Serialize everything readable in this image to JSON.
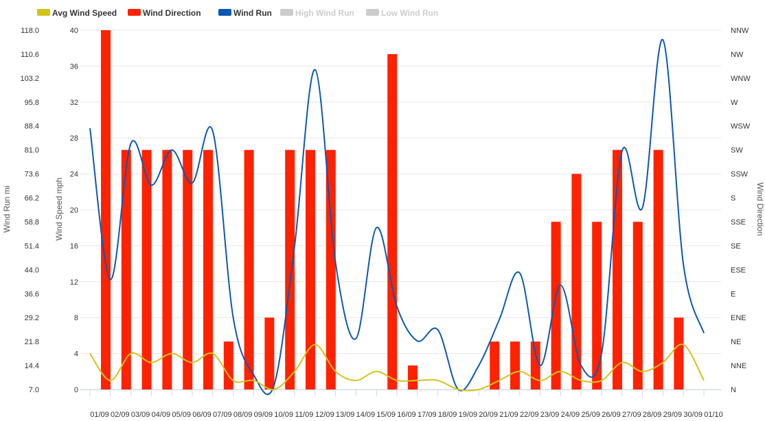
{
  "chart_data": {
    "type": "bar+line",
    "legend": {
      "placement": "top-left",
      "items": [
        {
          "label": "Avg Wind Speed",
          "color": "#d4c21a",
          "visible": true
        },
        {
          "label": "Wind Direction",
          "color": "#ff2200",
          "visible": true
        },
        {
          "label": "Wind Run",
          "color": "#0b57b5",
          "visible": true
        },
        {
          "label": "High Wind Run",
          "color": "#cccccc",
          "visible": false
        },
        {
          "label": "Low Wind Run",
          "color": "#cccccc",
          "visible": false
        }
      ]
    },
    "categories": [
      "01/09",
      "02/09",
      "03/09",
      "04/09",
      "05/09",
      "06/09",
      "07/09",
      "08/09",
      "09/09",
      "10/09",
      "11/09",
      "12/09",
      "13/09",
      "14/09",
      "15/09",
      "16/09",
      "17/09",
      "18/09",
      "19/09",
      "20/09",
      "21/09",
      "22/09",
      "23/09",
      "24/09",
      "25/09",
      "26/09",
      "27/09",
      "28/09",
      "29/09",
      "30/09",
      "01/10"
    ],
    "axes": {
      "wind_run": {
        "label": "Wind Run mi",
        "min": 7.0,
        "max": 118.0,
        "ticks": [
          "118.0",
          "110.6",
          "103.2",
          "95.8",
          "88.4",
          "81.0",
          "73.6",
          "66.2",
          "58.8",
          "51.4",
          "44.0",
          "36.6",
          "29.2",
          "21.8",
          "14.4",
          "7.0"
        ]
      },
      "wind_speed": {
        "label": "Wind Speed mph",
        "min": 0,
        "max": 40,
        "ticks": [
          "40",
          "36",
          "32",
          "28",
          "24",
          "20",
          "16",
          "12",
          "8",
          "4",
          "0"
        ]
      },
      "wind_direction": {
        "label": "Wind Direction",
        "ticks": [
          "NNW",
          "NW",
          "WNW",
          "W",
          "WSW",
          "SW",
          "SSW",
          "S",
          "SSE",
          "SE",
          "ESE",
          "E",
          "ENE",
          "NE",
          "NNE",
          "N"
        ]
      }
    },
    "grid": true,
    "series": [
      {
        "name": "Wind Direction",
        "kind": "bar",
        "axis": "wind_direction",
        "values": [
          "NNW",
          "SW",
          "SW",
          "SW",
          "SW",
          "SW",
          "NE",
          "SW",
          "ENE",
          "SW",
          "SW",
          "SW",
          null,
          null,
          "NW",
          "NNE",
          null,
          null,
          null,
          "NE",
          "NE",
          "NE",
          "SSE",
          "SSW",
          "SSE",
          "SW",
          "SSE",
          "SW",
          "ENE",
          null,
          null
        ]
      },
      {
        "name": "Wind Run",
        "kind": "line",
        "axis": "wind_run",
        "values": [
          87.7,
          41.0,
          83.0,
          70.1,
          81.0,
          70.8,
          86.8,
          29.2,
          11.5,
          8.4,
          51.4,
          105.8,
          46.2,
          22.7,
          57.0,
          32.6,
          22.0,
          25.4,
          7.0,
          14.4,
          28.5,
          43.0,
          14.4,
          39.2,
          14.4,
          18.1,
          80.6,
          63.2,
          115.0,
          45.6,
          24.4
        ]
      },
      {
        "name": "Avg Wind Speed",
        "kind": "line",
        "axis": "wind_speed",
        "values": [
          4,
          1,
          4,
          3,
          4,
          3,
          4,
          1,
          1,
          0,
          2,
          5,
          2,
          1,
          2,
          1,
          1,
          1,
          0,
          0,
          1,
          2,
          1,
          2,
          1,
          1,
          3,
          2,
          3,
          5,
          1
        ]
      }
    ]
  }
}
